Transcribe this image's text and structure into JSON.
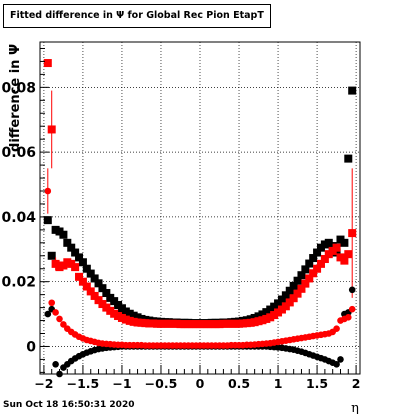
{
  "title": "Fitted difference in  Ψ  for Global Rec Pion EtapT",
  "timestamp": "Sun Oct 18 16:50:31 2020",
  "chart_data": {
    "type": "scatter",
    "title": "Fitted difference in  Ψ  for Global Rec Pion EtapT",
    "xlabel": "η",
    "ylabel": "difference in  Ψ",
    "xlim": [
      -2.05,
      2.05
    ],
    "ylim": [
      -0.0085,
      0.094
    ],
    "grid": true,
    "xticks": [
      -2,
      -1.5,
      -1,
      -0.5,
      0,
      0.5,
      1,
      1.5,
      2
    ],
    "xtick_labels": [
      "−2",
      "−1.5",
      "−1",
      "−0.5",
      "0",
      "0.5",
      "1",
      "1.5",
      "2"
    ],
    "yticks": [
      0,
      0.02,
      0.04,
      0.06,
      0.08
    ],
    "ytick_labels": [
      "0",
      "0.02",
      "0.04",
      "0.06",
      "0.08"
    ],
    "series": [
      {
        "color": "#000000",
        "marker": "square",
        "x": [
          -1.95,
          -1.9,
          -1.85,
          -1.8,
          -1.75,
          -1.7,
          -1.65,
          -1.6,
          -1.55,
          -1.5,
          -1.45,
          -1.4,
          -1.35,
          -1.3,
          -1.25,
          -1.2,
          -1.15,
          -1.1,
          -1.05,
          -1.0,
          -0.95,
          -0.9,
          -0.85,
          -0.8,
          -0.75,
          -0.7,
          -0.65,
          -0.6,
          -0.55,
          -0.5,
          -0.45,
          -0.4,
          -0.35,
          -0.3,
          -0.25,
          -0.2,
          -0.15,
          -0.1,
          -0.05,
          0.0,
          0.05,
          0.1,
          0.15,
          0.2,
          0.25,
          0.3,
          0.35,
          0.4,
          0.45,
          0.5,
          0.55,
          0.6,
          0.65,
          0.7,
          0.75,
          0.8,
          0.85,
          0.9,
          0.95,
          1.0,
          1.05,
          1.1,
          1.15,
          1.2,
          1.25,
          1.3,
          1.35,
          1.4,
          1.45,
          1.5,
          1.55,
          1.6,
          1.65,
          1.7,
          1.75,
          1.8,
          1.85,
          1.9,
          1.95
        ],
        "y": [
          0.039,
          0.028,
          0.036,
          0.0355,
          0.0345,
          0.032,
          0.0305,
          0.029,
          0.0275,
          0.026,
          0.024,
          0.0225,
          0.021,
          0.0195,
          0.018,
          0.0165,
          0.015,
          0.014,
          0.0128,
          0.0118,
          0.0108,
          0.0101,
          0.0095,
          0.009,
          0.0085,
          0.0082,
          0.008,
          0.0078,
          0.0077,
          0.0076,
          0.0075,
          0.0075,
          0.0074,
          0.0074,
          0.0073,
          0.0073,
          0.0073,
          0.0072,
          0.0072,
          0.0072,
          0.0072,
          0.0072,
          0.0073,
          0.0073,
          0.0073,
          0.0074,
          0.0074,
          0.0075,
          0.0076,
          0.0077,
          0.0079,
          0.0081,
          0.0084,
          0.0088,
          0.0093,
          0.0099,
          0.0106,
          0.0114,
          0.0123,
          0.0133,
          0.0145,
          0.0158,
          0.0172,
          0.0187,
          0.0203,
          0.022,
          0.0238,
          0.0256,
          0.0273,
          0.029,
          0.0305,
          0.0315,
          0.032,
          0.031,
          0.029,
          0.033,
          0.032,
          0.058,
          0.079
        ]
      },
      {
        "color": "#ff0000",
        "marker": "square",
        "x": [
          -1.95,
          -1.9,
          -1.85,
          -1.8,
          -1.75,
          -1.7,
          -1.65,
          -1.6,
          -1.55,
          -1.5,
          -1.45,
          -1.4,
          -1.35,
          -1.3,
          -1.25,
          -1.2,
          -1.15,
          -1.1,
          -1.05,
          -1.0,
          -0.95,
          -0.9,
          -0.85,
          -0.8,
          -0.75,
          -0.7,
          -0.65,
          -0.6,
          -0.55,
          -0.5,
          -0.45,
          -0.4,
          -0.35,
          -0.3,
          -0.25,
          -0.2,
          -0.15,
          -0.1,
          -0.05,
          0.0,
          0.05,
          0.1,
          0.15,
          0.2,
          0.25,
          0.3,
          0.35,
          0.4,
          0.45,
          0.5,
          0.55,
          0.6,
          0.65,
          0.7,
          0.75,
          0.8,
          0.85,
          0.9,
          0.95,
          1.0,
          1.05,
          1.1,
          1.15,
          1.2,
          1.25,
          1.3,
          1.35,
          1.4,
          1.45,
          1.5,
          1.55,
          1.6,
          1.65,
          1.7,
          1.75,
          1.8,
          1.85,
          1.9,
          1.95
        ],
        "y": [
          0.0875,
          0.067,
          0.0255,
          0.0245,
          0.025,
          0.026,
          0.0255,
          0.0245,
          0.0215,
          0.02,
          0.0185,
          0.017,
          0.0156,
          0.0143,
          0.0131,
          0.012,
          0.011,
          0.0101,
          0.0094,
          0.0088,
          0.0083,
          0.0079,
          0.0076,
          0.0074,
          0.0073,
          0.0072,
          0.0071,
          0.0071,
          0.007,
          0.007,
          0.007,
          0.007,
          0.007,
          0.007,
          0.0069,
          0.0069,
          0.0069,
          0.0069,
          0.0069,
          0.0069,
          0.0069,
          0.0069,
          0.0069,
          0.0069,
          0.0069,
          0.007,
          0.007,
          0.007,
          0.007,
          0.007,
          0.0071,
          0.0072,
          0.0073,
          0.0075,
          0.0078,
          0.0081,
          0.0085,
          0.009,
          0.0097,
          0.0105,
          0.0114,
          0.0124,
          0.0136,
          0.0149,
          0.0163,
          0.0178,
          0.0194,
          0.021,
          0.0226,
          0.024,
          0.0255,
          0.027,
          0.0285,
          0.0295,
          0.0305,
          0.0275,
          0.0265,
          0.0285,
          0.035
        ],
        "err": [
          0,
          0.012,
          0.002,
          0,
          0,
          0,
          0,
          0,
          0,
          0,
          0,
          0,
          0,
          0,
          0,
          0,
          0,
          0,
          0,
          0,
          0,
          0,
          0,
          0,
          0,
          0,
          0,
          0,
          0,
          0,
          0,
          0,
          0,
          0,
          0,
          0,
          0,
          0,
          0,
          0,
          0,
          0,
          0,
          0,
          0,
          0,
          0,
          0,
          0,
          0,
          0,
          0,
          0,
          0,
          0,
          0,
          0,
          0,
          0,
          0,
          0,
          0,
          0,
          0,
          0,
          0,
          0,
          0,
          0,
          0,
          0,
          0,
          0,
          0,
          0,
          0,
          0,
          0,
          0.02
        ]
      },
      {
        "color": "#000000",
        "marker": "circle",
        "x": [
          -1.95,
          -1.9,
          -1.85,
          -1.8,
          -1.75,
          -1.7,
          -1.65,
          -1.6,
          -1.55,
          -1.5,
          -1.45,
          -1.4,
          -1.35,
          -1.3,
          -1.25,
          -1.2,
          -1.15,
          -1.1,
          -1.05,
          -1.0,
          -0.95,
          -0.9,
          -0.85,
          -0.8,
          -0.75,
          -0.7,
          -0.65,
          -0.6,
          -0.55,
          -0.5,
          -0.45,
          -0.4,
          -0.35,
          -0.3,
          -0.25,
          -0.2,
          -0.15,
          -0.1,
          -0.05,
          0.0,
          0.05,
          0.1,
          0.15,
          0.2,
          0.25,
          0.3,
          0.35,
          0.4,
          0.45,
          0.5,
          0.55,
          0.6,
          0.65,
          0.7,
          0.75,
          0.8,
          0.85,
          0.9,
          0.95,
          1.0,
          1.05,
          1.1,
          1.15,
          1.2,
          1.25,
          1.3,
          1.35,
          1.4,
          1.45,
          1.5,
          1.55,
          1.6,
          1.65,
          1.7,
          1.75,
          1.8,
          1.85,
          1.9,
          1.95
        ],
        "y": [
          0.01,
          0.0115,
          -0.0055,
          -0.0085,
          -0.0065,
          -0.0055,
          -0.0045,
          -0.0037,
          -0.003,
          -0.0024,
          -0.0019,
          -0.0015,
          -0.0011,
          -0.0008,
          -0.0006,
          -0.0004,
          -0.0003,
          -0.0002,
          -0.0001,
          0.0,
          0.0,
          0.0,
          0.0,
          0.0,
          0.0,
          0.0,
          0.0,
          0.0,
          0.0,
          0.0,
          0.0,
          0.0,
          0.0,
          0.0,
          0.0,
          0.0,
          0.0,
          0.0,
          0.0,
          0.0,
          0.0,
          0.0,
          0.0,
          0.0,
          0.0,
          0.0,
          0.0,
          0.0,
          0.0,
          0.0,
          0.0,
          0.0,
          0.0,
          0.0,
          0.0,
          0.0,
          0.0,
          -0.0001,
          -0.0002,
          -0.0003,
          -0.0004,
          -0.0006,
          -0.0008,
          -0.001,
          -0.0013,
          -0.0016,
          -0.002,
          -0.0024,
          -0.0028,
          -0.0032,
          -0.0036,
          -0.004,
          -0.0045,
          -0.005,
          -0.0055,
          -0.004,
          0.01,
          0.0105,
          0.0175
        ]
      },
      {
        "color": "#ff0000",
        "marker": "circle",
        "x": [
          -1.95,
          -1.9,
          -1.85,
          -1.8,
          -1.75,
          -1.7,
          -1.65,
          -1.6,
          -1.55,
          -1.5,
          -1.45,
          -1.4,
          -1.35,
          -1.3,
          -1.25,
          -1.2,
          -1.15,
          -1.1,
          -1.05,
          -1.0,
          -0.95,
          -0.9,
          -0.85,
          -0.8,
          -0.75,
          -0.7,
          -0.65,
          -0.6,
          -0.55,
          -0.5,
          -0.45,
          -0.4,
          -0.35,
          -0.3,
          -0.25,
          -0.2,
          -0.15,
          -0.1,
          -0.05,
          0.0,
          0.05,
          0.1,
          0.15,
          0.2,
          0.25,
          0.3,
          0.35,
          0.4,
          0.45,
          0.5,
          0.55,
          0.6,
          0.65,
          0.7,
          0.75,
          0.8,
          0.85,
          0.9,
          0.95,
          1.0,
          1.05,
          1.1,
          1.15,
          1.2,
          1.25,
          1.3,
          1.35,
          1.4,
          1.45,
          1.5,
          1.55,
          1.6,
          1.65,
          1.7,
          1.75,
          1.8,
          1.85,
          1.9,
          1.95
        ],
        "y": [
          0.048,
          0.0135,
          0.0105,
          0.0085,
          0.0068,
          0.0055,
          0.0045,
          0.0037,
          0.003,
          0.0025,
          0.002,
          0.0017,
          0.0014,
          0.0011,
          0.0009,
          0.0008,
          0.0007,
          0.0006,
          0.0005,
          0.0005,
          0.0004,
          0.0004,
          0.0004,
          0.0004,
          0.0004,
          0.0003,
          0.0003,
          0.0003,
          0.0003,
          0.0003,
          0.0003,
          0.0003,
          0.0003,
          0.0003,
          0.0003,
          0.0003,
          0.0003,
          0.0003,
          0.0003,
          0.0003,
          0.0003,
          0.0003,
          0.0003,
          0.0003,
          0.0003,
          0.0003,
          0.0003,
          0.0004,
          0.0004,
          0.0004,
          0.0004,
          0.0005,
          0.0005,
          0.0006,
          0.0007,
          0.0008,
          0.0009,
          0.001,
          0.0012,
          0.0014,
          0.0016,
          0.0018,
          0.002,
          0.0022,
          0.0024,
          0.0026,
          0.0028,
          0.003,
          0.0032,
          0.0034,
          0.0036,
          0.0038,
          0.004,
          0.0045,
          0.0055,
          0.008,
          0.0085,
          0.009,
          0.0115
        ],
        "err": [
          0.007,
          0,
          0,
          0,
          0,
          0,
          0,
          0,
          0,
          0,
          0,
          0,
          0,
          0,
          0,
          0,
          0,
          0,
          0,
          0,
          0,
          0,
          0,
          0,
          0,
          0,
          0,
          0,
          0,
          0,
          0,
          0,
          0,
          0,
          0,
          0,
          0,
          0,
          0,
          0,
          0,
          0,
          0,
          0,
          0,
          0,
          0,
          0,
          0,
          0,
          0,
          0,
          0,
          0,
          0,
          0,
          0,
          0,
          0,
          0,
          0,
          0,
          0,
          0,
          0,
          0,
          0,
          0,
          0,
          0,
          0,
          0,
          0,
          0,
          0,
          0,
          0,
          0,
          0
        ]
      }
    ]
  }
}
